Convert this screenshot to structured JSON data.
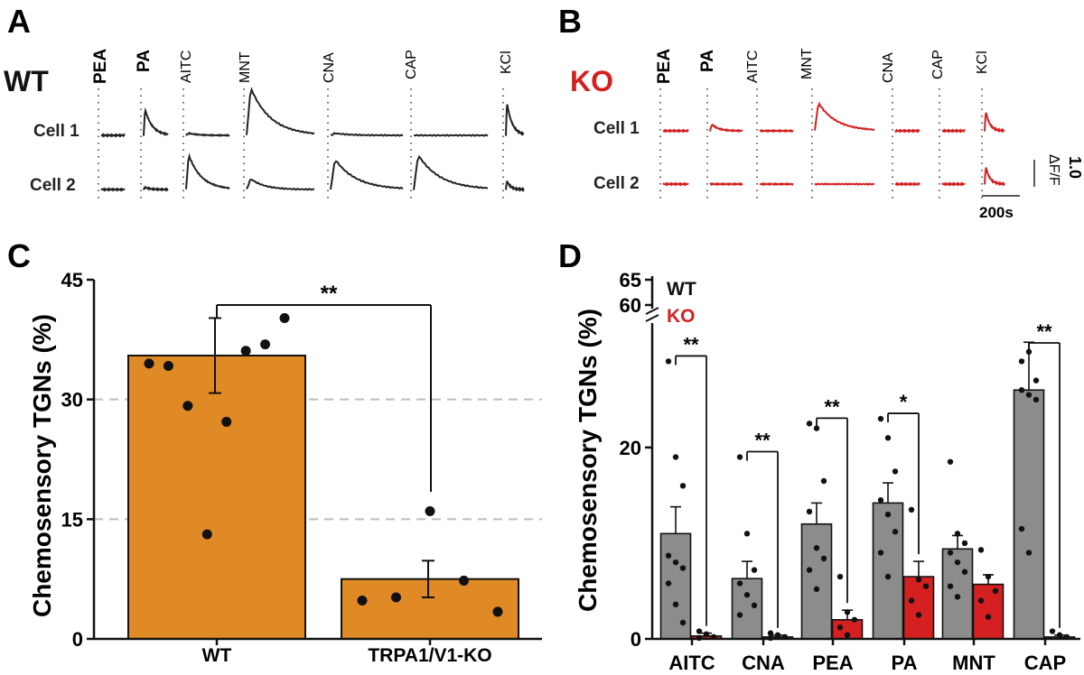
{
  "figure": {
    "panel_labels": [
      "A",
      "B",
      "C",
      "D"
    ],
    "wt_label": "WT",
    "ko_label": "KO",
    "cell_labels": [
      "Cell 1",
      "Cell 2"
    ],
    "scale_bar_y": "1.0",
    "scale_bar_y_unit": "ΔF/F",
    "scale_bar_x": "200s",
    "colors": {
      "wt_trace": "#222222",
      "ko_trace": "#d42020",
      "wt_bar_c": "#e08a25",
      "wt_bar_d": "#8c8c8c",
      "ko_bar": "#d42020"
    }
  },
  "chart_data": [
    {
      "panel": "A",
      "type": "line",
      "title": "WT",
      "stimuli": [
        "PEA",
        "PA",
        "AITC",
        "MNT",
        "CNA",
        "CAP",
        "KCl"
      ],
      "series": [
        {
          "name": "Cell 1",
          "responses": {
            "PEA": 0,
            "PA": 0.6,
            "AITC": 0.05,
            "MNT": 1.1,
            "CNA": 0.05,
            "CAP": 0,
            "KCl": 0.75
          }
        },
        {
          "name": "Cell 2",
          "responses": {
            "PEA": 0,
            "PA": 0.05,
            "AITC": 0.8,
            "MNT": 0.25,
            "CNA": 0.7,
            "CAP": 0.8,
            "KCl": 0.2
          }
        }
      ]
    },
    {
      "panel": "B",
      "type": "line",
      "title": "KO",
      "stimuli": [
        "PEA",
        "PA",
        "AITC",
        "MNT",
        "CNA",
        "CAP",
        "KCl"
      ],
      "series": [
        {
          "name": "Cell 1",
          "responses": {
            "PEA": 0,
            "PA": 0.15,
            "AITC": 0,
            "MNT": 0.65,
            "CNA": 0,
            "CAP": 0,
            "KCl": 0.45
          }
        },
        {
          "name": "Cell 2",
          "responses": {
            "PEA": 0,
            "PA": 0,
            "AITC": 0,
            "MNT": 0,
            "CNA": 0,
            "CAP": 0,
            "KCl": 0.4
          }
        }
      ],
      "scale": {
        "y": "1.0 ΔF/F",
        "x": "200s"
      }
    },
    {
      "panel": "C",
      "type": "bar",
      "ylabel": "Chemosensory TGNs (%)",
      "ylim": [
        0,
        45
      ],
      "yticks": [
        0,
        15,
        30,
        45
      ],
      "gridlines": [
        15,
        30
      ],
      "categories": [
        "WT",
        "TRPA1/V1-KO"
      ],
      "values": [
        35.5,
        7.5
      ],
      "errors": [
        4.7,
        2.3
      ],
      "points": [
        [
          34.5,
          34.2,
          29.2,
          13.1,
          27.2,
          36.1,
          36.9,
          40.2
        ],
        [
          4.8,
          5.2,
          16.0,
          7.3,
          3.4
        ]
      ],
      "significance": {
        "label": "**",
        "from": 0,
        "to": 1
      }
    },
    {
      "panel": "D",
      "type": "bar",
      "ylabel": "Chemosensory TGNs (%)",
      "yticks": [
        "0",
        "20",
        "60",
        "65"
      ],
      "lower_ylim": [
        0,
        33
      ],
      "upper_ylim": [
        60,
        65
      ],
      "categories": [
        "AITC",
        "CNA",
        "PEA",
        "PA",
        "MNT",
        "CAP"
      ],
      "legend": [
        "WT",
        "KO"
      ],
      "series": [
        {
          "name": "WT",
          "values": [
            11.0,
            6.3,
            12.0,
            14.2,
            9.4,
            26.0
          ],
          "errors": [
            2.8,
            1.8,
            2.2,
            2.1,
            1.4,
            5.0
          ],
          "points": [
            [
              29.0,
              19.0,
              16.0,
              8.7,
              8.0,
              7.4,
              5.8,
              3.6,
              1.7
            ],
            [
              19.0,
              11.0,
              7.2,
              5.8,
              4.6,
              3.5,
              2.5
            ],
            [
              22.5,
              22.0,
              16.5,
              13.3,
              9.5,
              8.4,
              7.2,
              5.2
            ],
            [
              23.0,
              21.0,
              17.5,
              14.5,
              13.0,
              11.2,
              9.0,
              6.5
            ],
            [
              18.5,
              11.0,
              10.0,
              9.0,
              8.0,
              7.0,
              5.5,
              4.4
            ],
            [
              29.0,
              30.0,
              27.0,
              26.0,
              25.5,
              25.0,
              11.5,
              9.0
            ]
          ]
        },
        {
          "name": "KO",
          "values": [
            0.3,
            0.2,
            2.0,
            6.5,
            5.7,
            0.2
          ],
          "errors": [
            0.3,
            0.2,
            1.0,
            1.6,
            1.0,
            0.2
          ],
          "points": [
            [
              0.8,
              0.5,
              0.2,
              0.1
            ],
            [
              0.6,
              0.4,
              0.2,
              0.1
            ],
            [
              6.5,
              2.8,
              2.0,
              1.2,
              0.4
            ],
            [
              13.5,
              6.2,
              5.5,
              4.0,
              2.5
            ],
            [
              9.3,
              6.5,
              5.0,
              4.0,
              2.3
            ],
            [
              0.8,
              0.4,
              0.2
            ]
          ]
        }
      ],
      "significance": [
        "**",
        "**",
        "**",
        "*",
        "",
        "**"
      ]
    }
  ]
}
